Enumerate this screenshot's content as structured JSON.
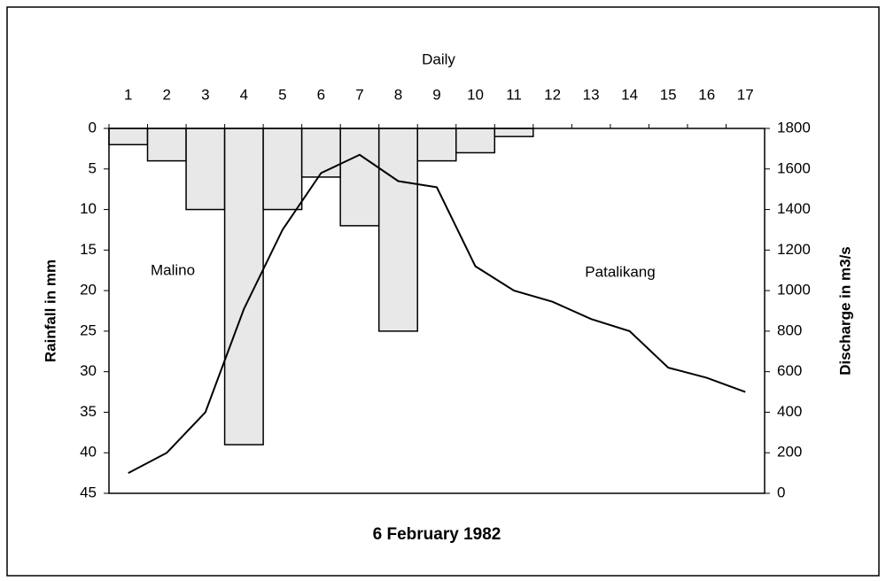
{
  "chart_data": {
    "type": "combo",
    "title": "6 February 1982",
    "xlabel": "Daily",
    "ylabel": "Rainfall in mm",
    "y2label": "Discharge in m3/s",
    "annotations": [
      "Malino",
      "Patalikang"
    ],
    "categories": [
      "1",
      "2",
      "3",
      "4",
      "5",
      "6",
      "7",
      "8",
      "9",
      "10",
      "11",
      "12",
      "13",
      "14",
      "15",
      "16",
      "17"
    ],
    "series": [
      {
        "name": "Rainfall",
        "type": "bar",
        "color": "#e8e8e8",
        "values": [
          2,
          4,
          10,
          39,
          10,
          6,
          12,
          25,
          4,
          3,
          1,
          0,
          0,
          0,
          0,
          0,
          0
        ]
      },
      {
        "name": "Discharge",
        "type": "line",
        "axis": "y2",
        "color": "#000000",
        "values": [
          100,
          200,
          400,
          910,
          1300,
          1580,
          1670,
          1540,
          1510,
          1120,
          1000,
          945,
          860,
          800,
          620,
          570,
          500
        ]
      }
    ],
    "ylim": [
      0,
      45
    ],
    "y_inverted": true,
    "yticks": [
      0,
      5,
      10,
      15,
      20,
      25,
      30,
      35,
      40,
      45
    ],
    "y2lim": [
      0,
      1800
    ],
    "y2ticks": [
      0,
      200,
      400,
      600,
      800,
      1000,
      1200,
      1400,
      1600,
      1800
    ]
  }
}
